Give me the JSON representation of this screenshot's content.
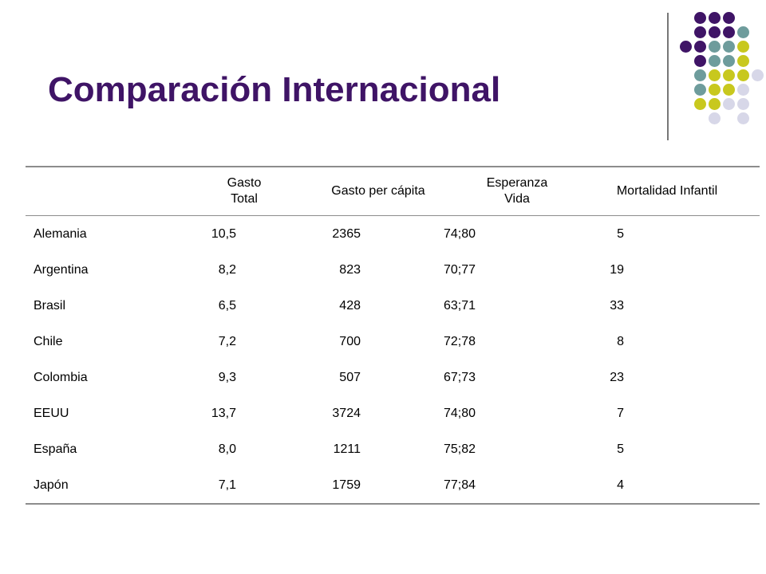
{
  "title": "Comparación Internacional",
  "decoration": {
    "colors": {
      "purple": "#3f1466",
      "teal": "#6e9c9c",
      "lime": "#c8c81e",
      "lavender": "#d7d7e8"
    }
  },
  "table": {
    "headers": [
      {
        "line1": "",
        "line2": ""
      },
      {
        "line1": "Gasto",
        "line2": "Total"
      },
      {
        "line1": "Gasto per cápita",
        "line2": ""
      },
      {
        "line1": "Esperanza",
        "line2": "Vida"
      },
      {
        "line1": "Mortalidad Infantil",
        "line2": ""
      }
    ],
    "rows": [
      {
        "pais": "Alemania",
        "gasto_total": "10,5",
        "gasto_per_capita": "2365",
        "esperanza_vida": "74;80",
        "mortalidad_infantil": "5"
      },
      {
        "pais": "Argentina",
        "gasto_total": "8,2",
        "gasto_per_capita": "823",
        "esperanza_vida": "70;77",
        "mortalidad_infantil": "19"
      },
      {
        "pais": "Brasil",
        "gasto_total": "6,5",
        "gasto_per_capita": "428",
        "esperanza_vida": "63;71",
        "mortalidad_infantil": "33"
      },
      {
        "pais": "Chile",
        "gasto_total": "7,2",
        "gasto_per_capita": "700",
        "esperanza_vida": "72;78",
        "mortalidad_infantil": "8"
      },
      {
        "pais": "Colombia",
        "gasto_total": "9,3",
        "gasto_per_capita": "507",
        "esperanza_vida": "67;73",
        "mortalidad_infantil": "23"
      },
      {
        "pais": "EEUU",
        "gasto_total": "13,7",
        "gasto_per_capita": "3724",
        "esperanza_vida": "74;80",
        "mortalidad_infantil": "7"
      },
      {
        "pais": "España",
        "gasto_total": "8,0",
        "gasto_per_capita": "1211",
        "esperanza_vida": "75;82",
        "mortalidad_infantil": "5"
      },
      {
        "pais": "Japón",
        "gasto_total": "7,1",
        "gasto_per_capita": "1759",
        "esperanza_vida": "77;84",
        "mortalidad_infantil": "4"
      }
    ]
  }
}
